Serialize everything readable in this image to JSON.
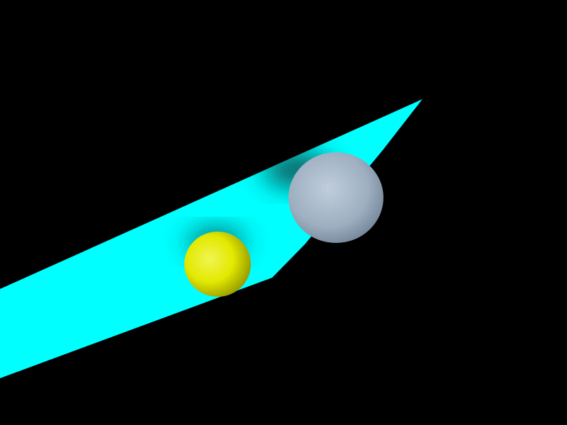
{
  "scene": {
    "background_color": "#000000",
    "plane": {
      "color": "#00ffff",
      "shadow_color": "#0a3a3a"
    },
    "yellow_sphere": {
      "color": "#ecf200",
      "highlight_color": "#faff55",
      "shade_color": "#9aa000"
    },
    "gray_sphere": {
      "color": "#a4b6c8",
      "highlight_color": "#c8d6e4",
      "shade_color": "#6e8296"
    }
  }
}
